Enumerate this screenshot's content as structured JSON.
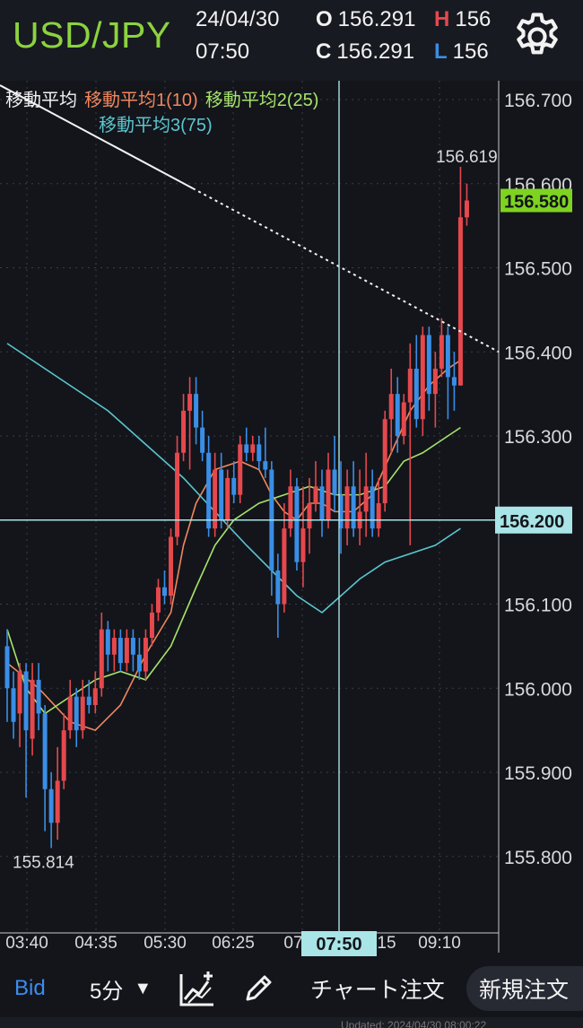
{
  "header": {
    "pair": "USD/JPY",
    "date": "24/04/30",
    "time": "07:50",
    "open_label": "O",
    "open": "156.291",
    "high_label": "H",
    "high": "156",
    "close_label": "C",
    "close": "156.291",
    "low_label": "L",
    "low": "156",
    "settings_icon": "gear-icon"
  },
  "legend": {
    "group": "移動平均",
    "ma1": "移動平均1(10)",
    "ma2": "移動平均2(25)",
    "ma3": "移動平均3(75)"
  },
  "colors": {
    "up": "#e5484d",
    "down": "#3a8ee6",
    "ma1": "#f0875d",
    "ma2": "#a6e36a",
    "ma3": "#5cc6cf",
    "current": "#7ed321",
    "crosshair": "#a9e4e6"
  },
  "chart_data": {
    "type": "candlestick",
    "timeframe": "5分",
    "ylim": [
      155.76,
      156.73
    ],
    "yticks": [
      "156.700",
      "156.600",
      "156.500",
      "156.400",
      "156.300",
      "156.200",
      "156.100",
      "156.000",
      "155.900",
      "155.800"
    ],
    "xticks": [
      "03:40",
      "04:35",
      "05:30",
      "06:25",
      "07",
      "09:10"
    ],
    "xtick_suffix": "15",
    "current_price_label": "156.580",
    "current_price": 156.58,
    "crosshair_price_label": "156.200",
    "crosshair_price": 156.2,
    "crosshair_time": "07:50",
    "high_annotation": "156.619",
    "high_value": 156.619,
    "low_annotation": "155.814",
    "low_value": 155.814,
    "trendline": [
      [
        156.717,
        0
      ],
      [
        156.4,
        1
      ]
    ],
    "candles": [
      [
        156.05,
        156.0,
        156.07,
        155.96
      ],
      [
        156.0,
        155.96,
        156.02,
        155.94
      ],
      [
        155.97,
        156.02,
        156.03,
        155.93
      ],
      [
        156.02,
        155.95,
        156.03,
        155.87
      ],
      [
        155.94,
        156.01,
        156.03,
        155.92
      ],
      [
        156.01,
        155.97,
        156.03,
        155.95
      ],
      [
        155.97,
        155.88,
        155.98,
        155.83
      ],
      [
        155.88,
        155.84,
        155.9,
        155.81
      ],
      [
        155.84,
        155.89,
        155.93,
        155.82
      ],
      [
        155.89,
        155.95,
        155.97,
        155.88
      ],
      [
        155.95,
        155.99,
        156.01,
        155.94
      ],
      [
        155.99,
        155.95,
        156.0,
        155.93
      ],
      [
        155.95,
        155.99,
        156.01,
        155.94
      ],
      [
        155.99,
        155.98,
        156.01,
        155.97
      ],
      [
        155.98,
        156.0,
        156.02,
        155.97
      ],
      [
        156.0,
        156.07,
        156.09,
        155.99
      ],
      [
        156.07,
        156.04,
        156.08,
        156.02
      ],
      [
        156.04,
        156.06,
        156.07,
        156.02
      ],
      [
        156.06,
        156.03,
        156.07,
        156.02
      ],
      [
        156.03,
        156.06,
        156.07,
        156.02
      ],
      [
        156.06,
        156.04,
        156.07,
        156.02
      ],
      [
        156.04,
        156.02,
        156.06,
        156.01
      ],
      [
        156.02,
        156.06,
        156.07,
        156.01
      ],
      [
        156.06,
        156.09,
        156.1,
        156.05
      ],
      [
        156.09,
        156.12,
        156.13,
        156.08
      ],
      [
        156.12,
        156.11,
        156.14,
        156.1
      ],
      [
        156.11,
        156.18,
        156.19,
        156.1
      ],
      [
        156.18,
        156.28,
        156.3,
        156.17
      ],
      [
        156.28,
        156.33,
        156.35,
        156.27
      ],
      [
        156.33,
        156.35,
        156.37,
        156.26
      ],
      [
        156.35,
        156.31,
        156.37,
        156.29
      ],
      [
        156.31,
        156.28,
        156.33,
        156.27
      ],
      [
        156.28,
        156.19,
        156.3,
        156.18
      ],
      [
        156.19,
        156.26,
        156.28,
        156.18
      ],
      [
        156.26,
        156.2,
        156.28,
        156.19
      ],
      [
        156.2,
        156.25,
        156.26,
        156.19
      ],
      [
        156.25,
        156.23,
        156.27,
        156.22
      ],
      [
        156.23,
        156.29,
        156.3,
        156.22
      ],
      [
        156.29,
        156.28,
        156.31,
        156.27
      ],
      [
        156.28,
        156.29,
        156.3,
        156.27
      ],
      [
        156.29,
        156.27,
        156.3,
        156.26
      ],
      [
        156.27,
        156.26,
        156.31,
        156.25
      ],
      [
        156.26,
        156.14,
        156.27,
        156.11
      ],
      [
        156.14,
        156.1,
        156.16,
        156.06
      ],
      [
        156.1,
        156.19,
        156.22,
        156.09
      ],
      [
        156.19,
        156.24,
        156.26,
        156.18
      ],
      [
        156.24,
        156.15,
        156.25,
        156.14
      ],
      [
        156.15,
        156.19,
        156.24,
        156.12
      ],
      [
        156.19,
        156.22,
        156.25,
        156.16
      ],
      [
        156.22,
        156.24,
        156.27,
        156.21
      ],
      [
        156.24,
        156.2,
        156.26,
        156.18
      ],
      [
        156.2,
        156.26,
        156.28,
        156.19
      ],
      [
        156.26,
        156.23,
        156.3,
        156.21
      ],
      [
        156.23,
        156.19,
        156.27,
        156.16
      ],
      [
        156.19,
        156.24,
        156.26,
        156.17
      ],
      [
        156.24,
        156.19,
        156.27,
        156.18
      ],
      [
        156.19,
        156.21,
        156.26,
        156.17
      ],
      [
        156.21,
        156.24,
        156.28,
        156.18
      ],
      [
        156.24,
        156.19,
        156.26,
        156.18
      ],
      [
        156.19,
        156.22,
        156.25,
        156.18
      ],
      [
        156.22,
        156.32,
        156.33,
        156.21
      ],
      [
        156.32,
        156.35,
        156.38,
        156.28
      ],
      [
        156.35,
        156.3,
        156.37,
        156.28
      ],
      [
        156.3,
        156.34,
        156.35,
        156.29
      ],
      [
        156.34,
        156.38,
        156.41,
        156.17
      ],
      [
        156.38,
        156.32,
        156.42,
        156.31
      ],
      [
        156.32,
        156.42,
        156.43,
        156.3
      ],
      [
        156.42,
        156.35,
        156.43,
        156.33
      ],
      [
        156.35,
        156.38,
        156.4,
        156.31
      ],
      [
        156.38,
        156.42,
        156.44,
        156.37
      ],
      [
        156.42,
        156.37,
        156.43,
        156.32
      ],
      [
        156.37,
        156.36,
        156.4,
        156.33
      ],
      [
        156.36,
        156.56,
        156.62,
        156.36
      ],
      [
        156.56,
        156.58,
        156.6,
        156.55
      ]
    ],
    "ma1": [
      [
        0,
        156.03
      ],
      [
        5,
        156.0
      ],
      [
        10,
        155.96
      ],
      [
        14,
        155.95
      ],
      [
        18,
        155.98
      ],
      [
        22,
        156.04
      ],
      [
        26,
        156.09
      ],
      [
        28,
        156.17
      ],
      [
        30,
        156.22
      ],
      [
        33,
        156.26
      ],
      [
        37,
        156.27
      ],
      [
        40,
        156.26
      ],
      [
        42,
        156.23
      ],
      [
        44,
        156.21
      ],
      [
        46,
        156.2
      ],
      [
        48,
        156.22
      ],
      [
        50,
        156.22
      ],
      [
        52,
        156.21
      ],
      [
        55,
        156.21
      ],
      [
        58,
        156.23
      ],
      [
        61,
        156.28
      ],
      [
        64,
        156.33
      ],
      [
        67,
        156.36
      ],
      [
        70,
        156.38
      ],
      [
        72,
        156.39
      ]
    ],
    "ma2": [
      [
        0,
        156.07
      ],
      [
        3,
        156.0
      ],
      [
        6,
        155.97
      ],
      [
        10,
        155.99
      ],
      [
        14,
        156.01
      ],
      [
        18,
        156.02
      ],
      [
        22,
        156.01
      ],
      [
        26,
        156.05
      ],
      [
        30,
        156.12
      ],
      [
        33,
        156.17
      ],
      [
        36,
        156.2
      ],
      [
        40,
        156.22
      ],
      [
        44,
        156.23
      ],
      [
        48,
        156.24
      ],
      [
        52,
        156.23
      ],
      [
        56,
        156.23
      ],
      [
        60,
        156.24
      ],
      [
        63,
        156.27
      ],
      [
        66,
        156.28
      ],
      [
        70,
        156.3
      ],
      [
        72,
        156.31
      ]
    ],
    "ma3": [
      [
        0,
        156.41
      ],
      [
        4,
        156.39
      ],
      [
        10,
        156.36
      ],
      [
        16,
        156.33
      ],
      [
        22,
        156.29
      ],
      [
        28,
        156.25
      ],
      [
        33,
        156.21
      ],
      [
        38,
        156.17
      ],
      [
        42,
        156.14
      ],
      [
        46,
        156.11
      ],
      [
        50,
        156.09
      ],
      [
        53,
        156.11
      ],
      [
        56,
        156.13
      ],
      [
        60,
        156.15
      ],
      [
        64,
        156.16
      ],
      [
        68,
        156.17
      ],
      [
        72,
        156.19
      ]
    ]
  },
  "toolbar": {
    "bid": "Bid",
    "period": "5分",
    "period_arrow": "▼",
    "indicator_icon": "indicator-chart-icon",
    "draw_icon": "pencil-icon",
    "chart_order": "チャート注文",
    "new_order": "新規注文"
  },
  "footer_text": "Updated: 2024/04/30 08:00:22"
}
